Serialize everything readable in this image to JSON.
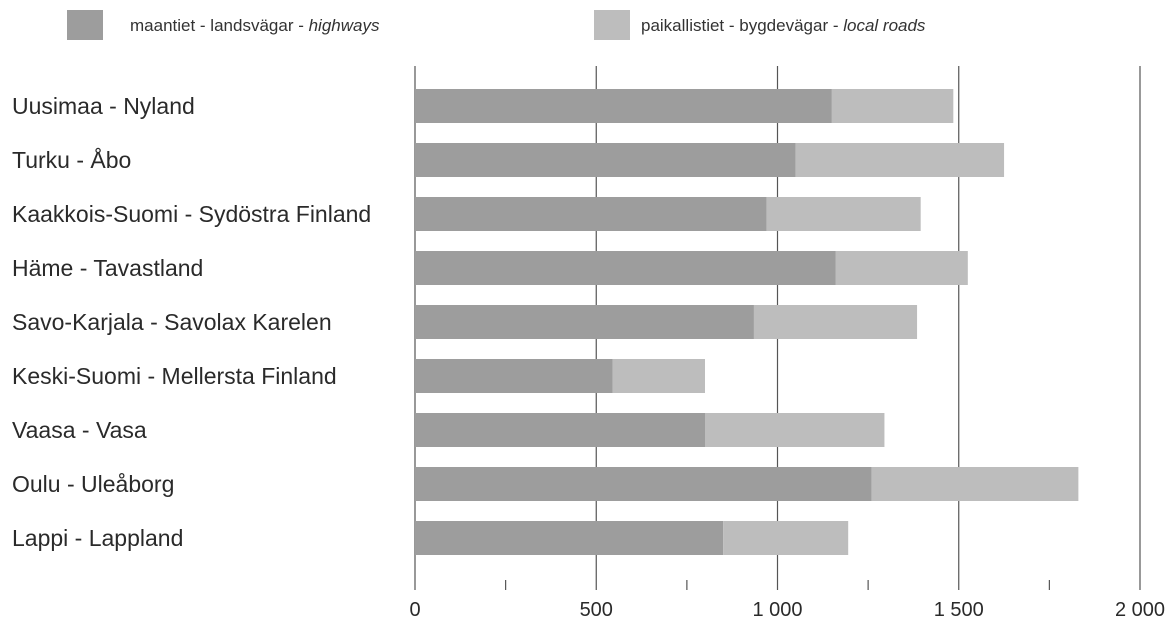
{
  "chart_data": {
    "type": "bar",
    "orientation": "horizontal",
    "stacked": true,
    "categories": [
      "Uusimaa - Nyland",
      "Turku - Åbo",
      "Kaakkois-Suomi - Sydöstra Finland",
      "Häme - Tavastland",
      "Savo-Karjala - Savolax Karelen",
      "Keski-Suomi - Mellersta Finland",
      "Vaasa - Vasa",
      "Oulu - Uleåborg",
      "Lappi - Lappland"
    ],
    "series": [
      {
        "name": "maantiet - landsvägar - highways",
        "legend_plain": "maantiet - landsvägar - ",
        "legend_italic": "highways",
        "color": "#9d9d9d",
        "values": [
          1150,
          1050,
          970,
          1160,
          935,
          545,
          800,
          1260,
          850
        ]
      },
      {
        "name": "paikallistiet - bygdevägar - local roads",
        "legend_plain": "paikallistiet - bygdevägar - ",
        "legend_italic": "local roads",
        "color": "#bdbdbd",
        "values": [
          335,
          575,
          425,
          365,
          450,
          255,
          495,
          570,
          345
        ]
      }
    ],
    "xlim": [
      0,
      2000
    ],
    "x_ticks": [
      0,
      500,
      1000,
      1500,
      2000
    ],
    "x_tick_labels": [
      "0",
      "500",
      "1 000",
      "1 500",
      "2 000"
    ],
    "x_minor_ticks": [
      250,
      750,
      1250,
      1750
    ],
    "grid": true,
    "legend_position": "top"
  }
}
